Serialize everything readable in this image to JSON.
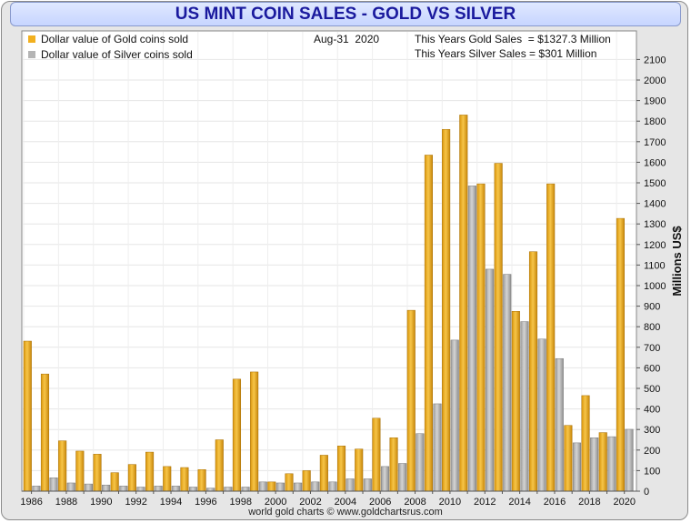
{
  "chart_data": {
    "type": "bar",
    "title": "US MINT COIN SALES - GOLD VS SILVER",
    "date": "Aug-31  2020",
    "notes": [
      "This Years Gold Sales  = $1327.3 Million",
      "This Years Silver Sales = $301 Million"
    ],
    "ylabel": "Millions US$",
    "xlabel": "",
    "ylim": [
      0,
      2200
    ],
    "y_ticks": [
      0,
      100,
      200,
      300,
      400,
      500,
      600,
      700,
      800,
      900,
      1000,
      1100,
      1200,
      1300,
      1400,
      1500,
      1600,
      1700,
      1800,
      1900,
      2000,
      2100
    ],
    "categories": [
      1986,
      1987,
      1988,
      1989,
      1990,
      1991,
      1992,
      1993,
      1994,
      1995,
      1996,
      1997,
      1998,
      1999,
      2000,
      2001,
      2002,
      2003,
      2004,
      2005,
      2006,
      2007,
      2008,
      2009,
      2010,
      2011,
      2012,
      2013,
      2014,
      2015,
      2016,
      2017,
      2018,
      2019,
      2020
    ],
    "x_tick_labels": [
      "1986",
      "1988",
      "1990",
      "1992",
      "1994",
      "1996",
      "1998",
      "2000",
      "2002",
      "2004",
      "2006",
      "2008",
      "2010",
      "2012",
      "2014",
      "2016",
      "2018",
      "2020"
    ],
    "series": [
      {
        "name": "Dollar value of Gold coins sold",
        "color": "#f2b01e",
        "values": [
          730,
          570,
          245,
          195,
          180,
          90,
          130,
          190,
          120,
          115,
          105,
          250,
          545,
          580,
          45,
          85,
          100,
          175,
          220,
          205,
          355,
          260,
          880,
          1635,
          1760,
          1830,
          1495,
          1595,
          875,
          1165,
          1495,
          320,
          465,
          285,
          1327
        ]
      },
      {
        "name": "Dollar value of Silver coins sold",
        "color": "#b4b4b4",
        "values": [
          25,
          65,
          40,
          35,
          30,
          25,
          20,
          25,
          25,
          20,
          15,
          20,
          20,
          45,
          40,
          40,
          45,
          45,
          60,
          60,
          120,
          135,
          280,
          425,
          735,
          1485,
          1080,
          1055,
          825,
          740,
          645,
          235,
          260,
          265,
          301
        ]
      }
    ],
    "grid": true,
    "legend_position": "top-left"
  },
  "footer": "world gold charts © www.goldchartsrus.com"
}
